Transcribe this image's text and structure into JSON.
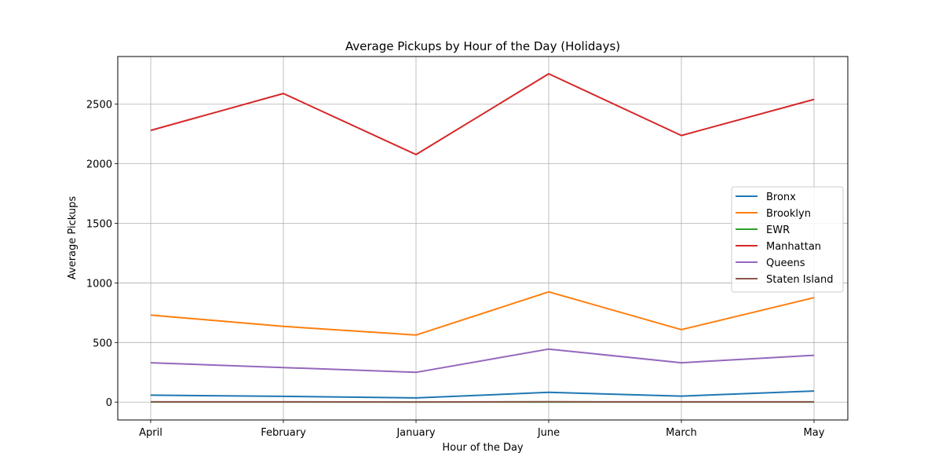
{
  "chart_data": {
    "type": "line",
    "title": "Average Pickups by Hour of the Day (Holidays)",
    "xlabel": "Hour of the Day",
    "ylabel": "Average Pickups",
    "categories": [
      "April",
      "February",
      "January",
      "June",
      "March",
      "May"
    ],
    "ylim": [
      -150,
      2900
    ],
    "yticks": [
      0,
      500,
      1000,
      1500,
      2000,
      2500
    ],
    "grid": true,
    "legend_position": "center-right",
    "series": [
      {
        "name": "Bronx",
        "color": "#1f77b4",
        "values": [
          58,
          48,
          35,
          82,
          50,
          93
        ]
      },
      {
        "name": "Brooklyn",
        "color": "#ff7f0e",
        "values": [
          730,
          635,
          563,
          925,
          608,
          876
        ]
      },
      {
        "name": "EWR",
        "color": "#2ca02c",
        "values": [
          1,
          1,
          1,
          1,
          1,
          1
        ]
      },
      {
        "name": "Manhattan",
        "color": "#d62728",
        "values": [
          2280,
          2590,
          2077,
          2755,
          2237,
          2540
        ]
      },
      {
        "name": "Queens",
        "color": "#9467bd",
        "values": [
          330,
          290,
          250,
          445,
          330,
          393
        ]
      },
      {
        "name": "Staten Island",
        "color": "#8c564b",
        "values": [
          2,
          2,
          1,
          3,
          2,
          2
        ]
      }
    ]
  }
}
